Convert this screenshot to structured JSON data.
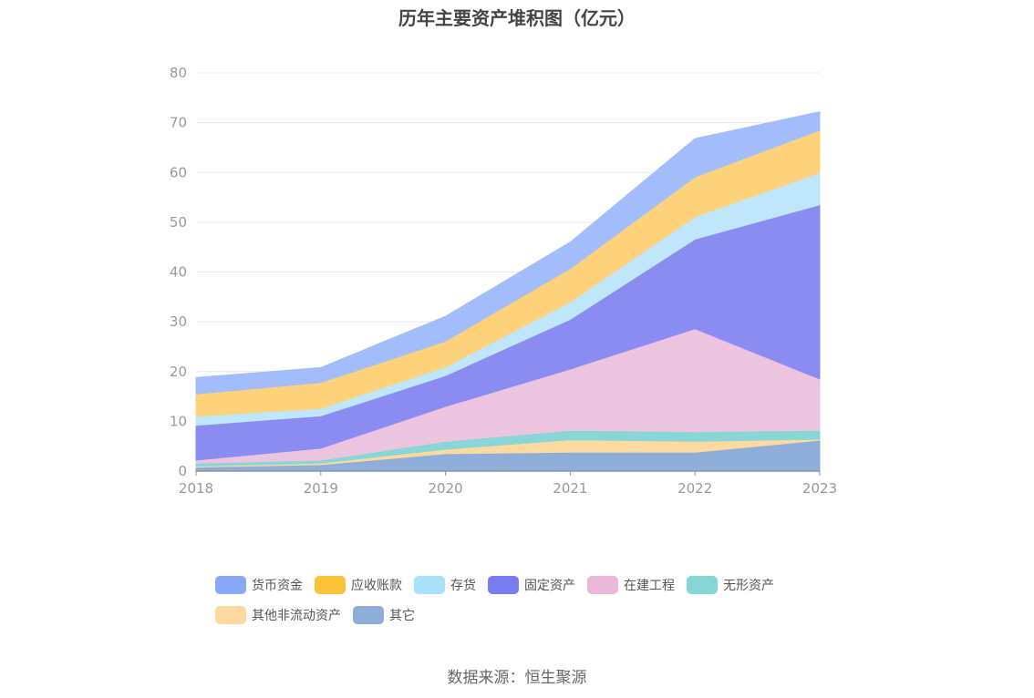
{
  "chart_data": {
    "type": "area",
    "stacked": true,
    "title": "历年主要资产堆积图（亿元）",
    "x": [
      "2018",
      "2019",
      "2020",
      "2021",
      "2022",
      "2023"
    ],
    "ylim": [
      0,
      80
    ],
    "yticks": [
      "0",
      "10",
      "20",
      "30",
      "40",
      "50",
      "60",
      "70",
      "80"
    ],
    "grid": true,
    "legend_position": "bottom",
    "series": [
      {
        "name": "其它",
        "color": "#8fadd9",
        "values": [
          0.8,
          1.3,
          3.5,
          3.8,
          3.8,
          6.2
        ]
      },
      {
        "name": "其他非流动资产",
        "color": "#fdd9a0",
        "values": [
          0.2,
          0.3,
          0.9,
          2.5,
          2.2,
          0.2
        ]
      },
      {
        "name": "无形资产",
        "color": "#89d6d8",
        "values": [
          0.6,
          0.6,
          1.6,
          1.9,
          1.9,
          1.8
        ]
      },
      {
        "name": "在建工程",
        "color": "#ecc4e0",
        "values": [
          0.6,
          2.4,
          7.0,
          12.3,
          20.7,
          10.3
        ]
      },
      {
        "name": "固定资产",
        "color": "#8b8cf2",
        "values": [
          7.0,
          6.5,
          6.2,
          10.0,
          18.0,
          35.0
        ]
      },
      {
        "name": "存货",
        "color": "#bfe6fa",
        "values": [
          1.8,
          1.5,
          1.7,
          3.5,
          4.5,
          6.5
        ]
      },
      {
        "name": "应收账款",
        "color": "#fdd27a",
        "values": [
          4.5,
          5.2,
          5.2,
          6.7,
          8.0,
          8.5
        ]
      },
      {
        "name": "货币资金",
        "color": "#a3bdfc",
        "values": [
          3.3,
          3.0,
          5.0,
          5.3,
          7.7,
          3.7
        ]
      }
    ]
  },
  "legend": [
    {
      "label": "货币资金",
      "color": "#8aa8f8"
    },
    {
      "label": "应收账款",
      "color": "#fcc23a"
    },
    {
      "label": "存货",
      "color": "#a8e1f8"
    },
    {
      "label": "固定资产",
      "color": "#7b7cf0"
    },
    {
      "label": "在建工程",
      "color": "#eab8d8"
    },
    {
      "label": "无形资产",
      "color": "#86d6d8"
    },
    {
      "label": "其他非流动资产",
      "color": "#fdd9a0"
    },
    {
      "label": "其它",
      "color": "#8fadd9"
    }
  ],
  "source": "数据来源：恒生聚源"
}
